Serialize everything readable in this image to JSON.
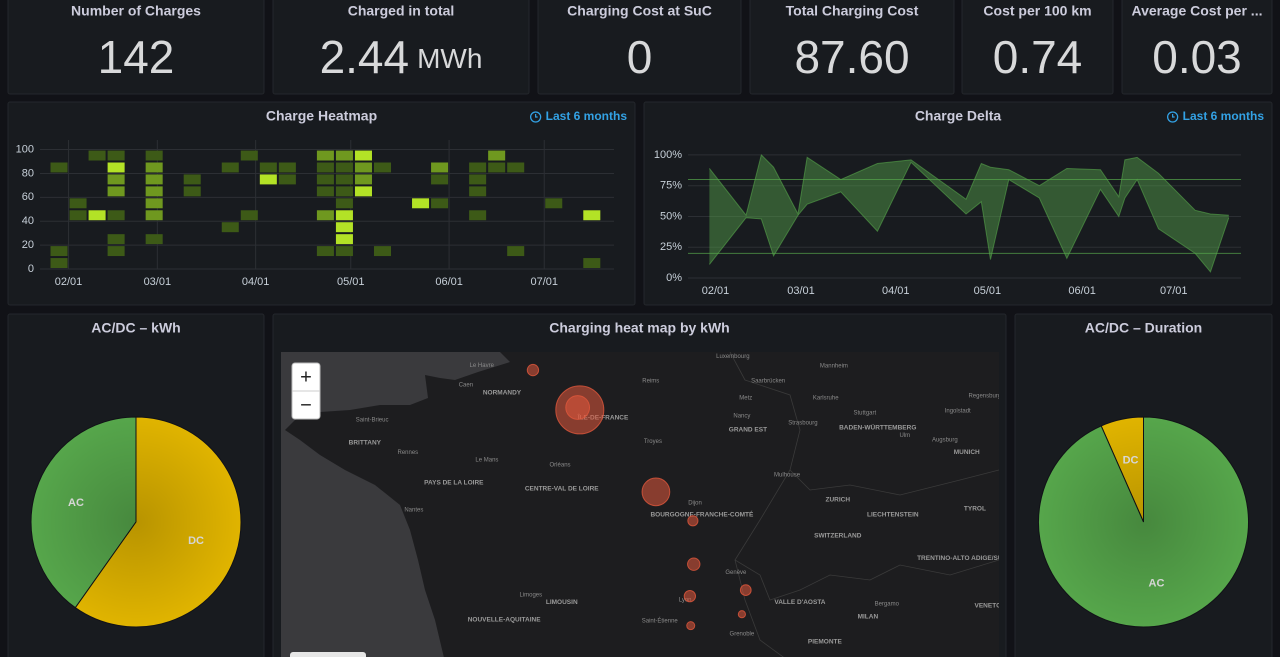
{
  "stats": [
    {
      "title": "Number of Charges",
      "value": "142"
    },
    {
      "title": "Charged in total",
      "value": "2.44",
      "unit": "MWh"
    },
    {
      "title": "Charging Cost at SuC",
      "value": "0"
    },
    {
      "title": "Total Charging Cost",
      "value": "87.60"
    },
    {
      "title": "Cost per 100 km",
      "value": "0.74"
    },
    {
      "title": "Average Cost per ...",
      "value": "0.03"
    }
  ],
  "chart_data": [
    {
      "type": "heatmap",
      "title": "Charge Heatmap",
      "time_range": "Last 6 months",
      "xlim": [
        22,
        203
      ],
      "xticks": [
        {
          "value": 31,
          "label": "02/01"
        },
        {
          "value": 59,
          "label": "03/01"
        },
        {
          "value": 90,
          "label": "04/01"
        },
        {
          "value": 120,
          "label": "05/01"
        },
        {
          "value": 151,
          "label": "06/01"
        },
        {
          "value": 181,
          "label": "07/01"
        }
      ],
      "ylim": [
        0,
        108
      ],
      "yticks": [
        0,
        20,
        40,
        60,
        80,
        100
      ],
      "grid": true,
      "xbin": 6,
      "ybin": 10,
      "colors": [
        "#3d5a17",
        "#6f981f",
        "#b3e226"
      ],
      "cells": [
        [
          25,
          80,
          1
        ],
        [
          25,
          10,
          1
        ],
        [
          25,
          0,
          1
        ],
        [
          31,
          50,
          1
        ],
        [
          31,
          40,
          1
        ],
        [
          37,
          90,
          1
        ],
        [
          37,
          40,
          3
        ],
        [
          43,
          90,
          1
        ],
        [
          43,
          80,
          3
        ],
        [
          43,
          70,
          2
        ],
        [
          43,
          60,
          2
        ],
        [
          43,
          40,
          1
        ],
        [
          43,
          20,
          1
        ],
        [
          43,
          10,
          1
        ],
        [
          55,
          90,
          1
        ],
        [
          55,
          80,
          2
        ],
        [
          55,
          70,
          2
        ],
        [
          55,
          60,
          2
        ],
        [
          55,
          50,
          2
        ],
        [
          55,
          40,
          2
        ],
        [
          55,
          20,
          1
        ],
        [
          67,
          70,
          1
        ],
        [
          67,
          60,
          1
        ],
        [
          79,
          80,
          1
        ],
        [
          79,
          30,
          1
        ],
        [
          85,
          90,
          1
        ],
        [
          85,
          40,
          1
        ],
        [
          91,
          80,
          1
        ],
        [
          91,
          70,
          3
        ],
        [
          97,
          80,
          1
        ],
        [
          97,
          70,
          1
        ],
        [
          109,
          90,
          2
        ],
        [
          109,
          80,
          1
        ],
        [
          109,
          70,
          1
        ],
        [
          109,
          60,
          1
        ],
        [
          109,
          40,
          2
        ],
        [
          109,
          10,
          1
        ],
        [
          115,
          90,
          2
        ],
        [
          115,
          80,
          1
        ],
        [
          115,
          70,
          1
        ],
        [
          115,
          60,
          1
        ],
        [
          115,
          50,
          1
        ],
        [
          115,
          40,
          3
        ],
        [
          115,
          30,
          3
        ],
        [
          115,
          20,
          3
        ],
        [
          115,
          10,
          1
        ],
        [
          121,
          90,
          3
        ],
        [
          121,
          80,
          2
        ],
        [
          121,
          70,
          2
        ],
        [
          121,
          60,
          3
        ],
        [
          127,
          80,
          1
        ],
        [
          127,
          10,
          1
        ],
        [
          139,
          50,
          3
        ],
        [
          145,
          80,
          2
        ],
        [
          145,
          70,
          1
        ],
        [
          145,
          50,
          1
        ],
        [
          157,
          80,
          1
        ],
        [
          157,
          70,
          1
        ],
        [
          157,
          60,
          1
        ],
        [
          157,
          40,
          1
        ],
        [
          163,
          90,
          2
        ],
        [
          163,
          80,
          1
        ],
        [
          169,
          80,
          1
        ],
        [
          169,
          10,
          1
        ],
        [
          181,
          50,
          1
        ],
        [
          193,
          40,
          3
        ],
        [
          193,
          0,
          1
        ]
      ]
    },
    {
      "type": "area",
      "title": "Charge Delta",
      "time_range": "Last 6 months",
      "xlim": [
        22,
        203
      ],
      "xticks": [
        {
          "value": 31,
          "label": "02/01"
        },
        {
          "value": 59,
          "label": "03/01"
        },
        {
          "value": 90,
          "label": "04/01"
        },
        {
          "value": 120,
          "label": "05/01"
        },
        {
          "value": 151,
          "label": "06/01"
        },
        {
          "value": 181,
          "label": "07/01"
        }
      ],
      "ylim": [
        0,
        104
      ],
      "yticks": [
        {
          "value": 0,
          "label": "0%"
        },
        {
          "value": 25,
          "label": "25%"
        },
        {
          "value": 50,
          "label": "50%"
        },
        {
          "value": 75,
          "label": "75%"
        },
        {
          "value": 100,
          "label": "100%"
        }
      ],
      "color": "#56a64b",
      "thresholds": [
        20,
        80
      ],
      "x": [
        29,
        41,
        46,
        50,
        58,
        61,
        72,
        84,
        95,
        113,
        118,
        121,
        127,
        137,
        146,
        157,
        163,
        165,
        169,
        176,
        188,
        193,
        199
      ],
      "upper": [
        89,
        51,
        100,
        90,
        52,
        98,
        80,
        93,
        96,
        64,
        93,
        90,
        88,
        75,
        89,
        88,
        66,
        96,
        98,
        85,
        55,
        52,
        51
      ],
      "lower": [
        11,
        49,
        48,
        18,
        51,
        60,
        70,
        38,
        94,
        52,
        62,
        15,
        80,
        65,
        16,
        72,
        50,
        65,
        80,
        40,
        20,
        5,
        49
      ]
    },
    {
      "type": "pie",
      "title": "AC/DC – kWh",
      "categories": [
        "AC",
        "DC"
      ],
      "values": [
        40.2,
        59.8
      ],
      "colors": [
        "#56a64b",
        "#e0b400"
      ]
    },
    {
      "type": "map",
      "title": "Charging heat map by kWh",
      "zoom_in": "+",
      "zoom_out": "−",
      "lon": [
        -4.67,
        12.03
      ],
      "lat": [
        49.82,
        44.76
      ],
      "bubble_color": "#e0573c",
      "bubbles": [
        {
          "lat": 48.86,
          "lon": 2.28,
          "kwh": 900
        },
        {
          "lat": 48.9,
          "lon": 2.23,
          "kwh": 220
        },
        {
          "lat": 49.52,
          "lon": 1.19,
          "kwh": 50
        },
        {
          "lat": 47.5,
          "lon": 4.05,
          "kwh": 300
        },
        {
          "lat": 47.02,
          "lon": 4.91,
          "kwh": 40
        },
        {
          "lat": 46.3,
          "lon": 4.93,
          "kwh": 60
        },
        {
          "lat": 45.77,
          "lon": 4.84,
          "kwh": 50
        },
        {
          "lat": 45.28,
          "lon": 4.86,
          "kwh": 25
        },
        {
          "lat": 45.87,
          "lon": 6.14,
          "kwh": 45
        },
        {
          "lat": 45.47,
          "lon": 6.05,
          "kwh": 20
        }
      ],
      "places": [
        {
          "name": "Le Havre",
          "lat": 49.6,
          "lon": 0.0
        },
        {
          "name": "Caen",
          "lat": 49.27,
          "lon": -0.37
        },
        {
          "name": "NORMANDY",
          "lat": 49.14,
          "lon": 0.47,
          "region": true
        },
        {
          "name": "Reims",
          "lat": 49.34,
          "lon": 3.93
        },
        {
          "name": "Luxembourg",
          "lat": 49.75,
          "lon": 5.84
        },
        {
          "name": "Saarbrücken",
          "lat": 49.34,
          "lon": 6.66
        },
        {
          "name": "Mannheim",
          "lat": 49.59,
          "lon": 8.19
        },
        {
          "name": "Metz",
          "lat": 49.06,
          "lon": 6.14
        },
        {
          "name": "Karlsruhe",
          "lat": 49.06,
          "lon": 8.0
        },
        {
          "name": "Nancy",
          "lat": 48.76,
          "lon": 6.05
        },
        {
          "name": "Strasbourg",
          "lat": 48.64,
          "lon": 7.47
        },
        {
          "name": "GRAND EST",
          "lat": 48.53,
          "lon": 6.19,
          "region": true
        },
        {
          "name": "Stuttgart",
          "lat": 48.81,
          "lon": 8.91
        },
        {
          "name": "BADEN-WÜRTTEMBERG",
          "lat": 48.56,
          "lon": 9.21,
          "region": true
        },
        {
          "name": "Ulm",
          "lat": 48.44,
          "lon": 9.84
        },
        {
          "name": "Ingolstadt",
          "lat": 48.84,
          "lon": 11.07
        },
        {
          "name": "Regensburg",
          "lat": 49.09,
          "lon": 11.7
        },
        {
          "name": "Augsburg",
          "lat": 48.36,
          "lon": 10.77
        },
        {
          "name": "MUNICH",
          "lat": 48.16,
          "lon": 11.28,
          "region": true
        },
        {
          "name": "ÎLE-DE-FRANCE",
          "lat": 48.73,
          "lon": 2.82,
          "region": true
        },
        {
          "name": "Troyes",
          "lat": 48.34,
          "lon": 3.98
        },
        {
          "name": "BRITTANY",
          "lat": 48.31,
          "lon": -2.72,
          "region": true
        },
        {
          "name": "Saint-Brieuc",
          "lat": 48.69,
          "lon": -2.55
        },
        {
          "name": "Rennes",
          "lat": 48.15,
          "lon": -1.72
        },
        {
          "name": "Le Mans",
          "lat": 48.03,
          "lon": 0.12
        },
        {
          "name": "Orléans",
          "lat": 47.95,
          "lon": 1.82
        },
        {
          "name": "PAYS DE LA LOIRE",
          "lat": 47.65,
          "lon": -0.65,
          "region": true
        },
        {
          "name": "CENTRE-VAL DE LOIRE",
          "lat": 47.55,
          "lon": 1.86,
          "region": true
        },
        {
          "name": "Nantes",
          "lat": 47.2,
          "lon": -1.58
        },
        {
          "name": "Dijon",
          "lat": 47.32,
          "lon": 4.96
        },
        {
          "name": "BOURGOGNE-FRANCHE-COMTÉ",
          "lat": 47.12,
          "lon": 5.12,
          "region": true
        },
        {
          "name": "Mulhouse",
          "lat": 47.78,
          "lon": 7.1
        },
        {
          "name": "ZURICH",
          "lat": 47.37,
          "lon": 8.28,
          "region": true
        },
        {
          "name": "LIECHTENSTEIN",
          "lat": 47.12,
          "lon": 9.56,
          "region": true
        },
        {
          "name": "SWITZERLAND",
          "lat": 46.77,
          "lon": 8.28,
          "region": true
        },
        {
          "name": "TYROL",
          "lat": 47.22,
          "lon": 11.47,
          "region": true
        },
        {
          "name": "Genève",
          "lat": 46.16,
          "lon": 5.91
        },
        {
          "name": "TRENTINO-ALTO ADIGE/SÜDTIROL",
          "lat": 46.4,
          "lon": 11.4,
          "region": true
        },
        {
          "name": "VALLE D'AOSTA",
          "lat": 45.67,
          "lon": 7.4,
          "region": true
        },
        {
          "name": "Bergamo",
          "lat": 45.64,
          "lon": 9.42
        },
        {
          "name": "MILAN",
          "lat": 45.43,
          "lon": 8.98,
          "region": true
        },
        {
          "name": "VENETO",
          "lat": 45.61,
          "lon": 11.77,
          "region": true
        },
        {
          "name": "PIEMONTE",
          "lat": 45.01,
          "lon": 7.98,
          "region": true
        },
        {
          "name": "Limoges",
          "lat": 45.79,
          "lon": 1.14
        },
        {
          "name": "LIMOUSIN",
          "lat": 45.67,
          "lon": 1.86,
          "region": true
        },
        {
          "name": "NOUVELLE-AQUITAINE",
          "lat": 45.38,
          "lon": 0.52,
          "region": true
        },
        {
          "name": "Lyon",
          "lat": 45.71,
          "lon": 4.73
        },
        {
          "name": "Saint-Étienne",
          "lat": 45.36,
          "lon": 4.14
        },
        {
          "name": "Grenoble",
          "lat": 45.14,
          "lon": 6.05
        }
      ]
    },
    {
      "type": "pie",
      "title": "AC/DC – Duration",
      "categories": [
        "DC",
        "AC"
      ],
      "values": [
        6.6,
        93.4
      ],
      "colors": [
        "#e0b400",
        "#56a64b"
      ]
    }
  ]
}
